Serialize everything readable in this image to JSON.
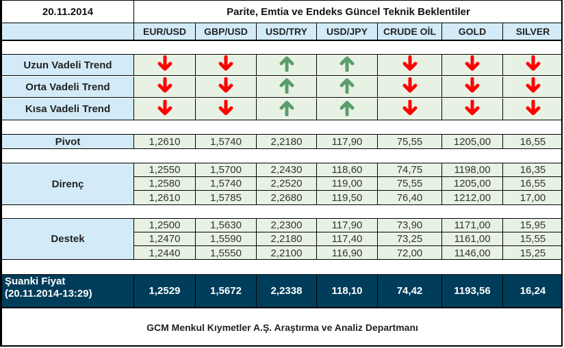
{
  "header": {
    "date": "20.11.2014",
    "title": "Parite, Emtia ve Endeks Güncel Teknik Beklentiler"
  },
  "columns": [
    "EUR/USD",
    "GBP/USD",
    "USD/TRY",
    "USD/JPY",
    "CRUDE OİL",
    "GOLD",
    "SILVER"
  ],
  "colors": {
    "header_bg": "#d3ebf8",
    "value_bg": "#e8f2e4",
    "current_price_bg": "#003d5b",
    "arrow_down": "#ff0000",
    "arrow_up": "#5a9e6a"
  },
  "trends": [
    {
      "label": "Uzun Vadeli Trend",
      "values": [
        "down",
        "down",
        "up",
        "up",
        "down",
        "down",
        "down"
      ]
    },
    {
      "label": "Orta Vadeli Trend",
      "values": [
        "down",
        "down",
        "up",
        "up",
        "down",
        "down",
        "down"
      ]
    },
    {
      "label": "Kısa Vadeli Trend",
      "values": [
        "down",
        "down",
        "up",
        "up",
        "down",
        "down",
        "down"
      ]
    }
  ],
  "pivot": {
    "label": "Pivot",
    "values": [
      "1,2610",
      "1,5740",
      "2,2180",
      "117,90",
      "75,55",
      "1205,00",
      "16,55"
    ]
  },
  "resistance": {
    "label": "Direnç",
    "rows": [
      [
        "1,2550",
        "1,5700",
        "2,2430",
        "118,60",
        "74,75",
        "1198,00",
        "16,35"
      ],
      [
        "1,2580",
        "1,5740",
        "2,2520",
        "119,00",
        "75,55",
        "1205,00",
        "16,55"
      ],
      [
        "1,2610",
        "1,5785",
        "2,2680",
        "119,50",
        "76,40",
        "1212,00",
        "17,00"
      ]
    ]
  },
  "support": {
    "label": "Destek",
    "rows": [
      [
        "1,2500",
        "1,5630",
        "2,2300",
        "117,90",
        "73,90",
        "1171,00",
        "15,95"
      ],
      [
        "1,2470",
        "1,5590",
        "2,2180",
        "117,40",
        "73,25",
        "1161,00",
        "15,55"
      ],
      [
        "1,2440",
        "1,5550",
        "2,2100",
        "116,90",
        "72,00",
        "1146,00",
        "15,25"
      ]
    ]
  },
  "current": {
    "label_line1": "Şuanki Fiyat",
    "label_line2": "(20.11.2014-13:29)",
    "values": [
      "1,2529",
      "1,5672",
      "2,2338",
      "118,10",
      "74,42",
      "1193,56",
      "16,24"
    ]
  },
  "footer": {
    "text": "GCM Menkul Kıymetler A.Ş. Araştırma ve Analiz Departmanı"
  }
}
